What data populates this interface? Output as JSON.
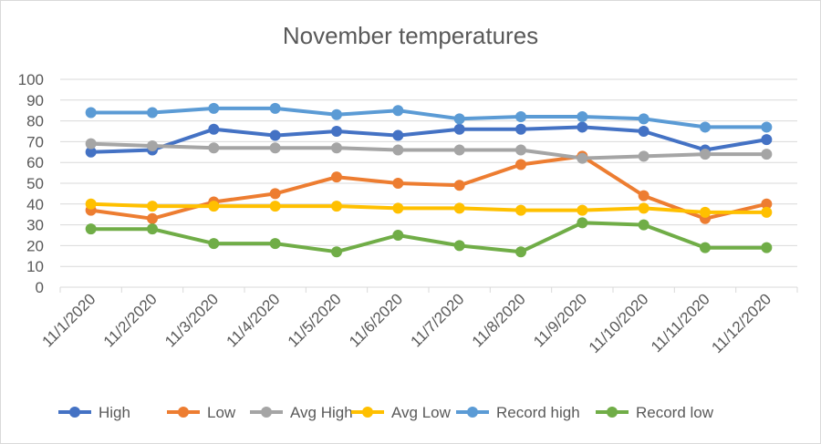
{
  "chart_data": {
    "type": "line",
    "title": "November temperatures",
    "xlabel": "",
    "ylabel": "",
    "ylim": [
      0,
      100
    ],
    "yticks": [
      0,
      10,
      20,
      30,
      40,
      50,
      60,
      70,
      80,
      90,
      100
    ],
    "grid": true,
    "legend_position": "bottom",
    "categories": [
      "11/1/2020",
      "11/2/2020",
      "11/3/2020",
      "11/4/2020",
      "11/5/2020",
      "11/6/2020",
      "11/7/2020",
      "11/8/2020",
      "11/9/2020",
      "11/10/2020",
      "11/11/2020",
      "11/12/2020"
    ],
    "series": [
      {
        "name": "High",
        "color": "#4472c4",
        "values": [
          65,
          66,
          76,
          73,
          75,
          73,
          76,
          76,
          77,
          75,
          66,
          71
        ]
      },
      {
        "name": "Low",
        "color": "#ed7d31",
        "values": [
          37,
          33,
          41,
          45,
          53,
          50,
          49,
          59,
          63,
          44,
          33,
          40
        ]
      },
      {
        "name": "Avg High",
        "color": "#a5a5a5",
        "values": [
          69,
          68,
          67,
          67,
          67,
          66,
          66,
          66,
          62,
          63,
          64,
          64
        ]
      },
      {
        "name": "Avg Low",
        "color": "#ffc000",
        "values": [
          40,
          39,
          39,
          39,
          39,
          38,
          38,
          37,
          37,
          38,
          36,
          36
        ]
      },
      {
        "name": "Record high",
        "color": "#5b9bd5",
        "values": [
          84,
          84,
          86,
          86,
          83,
          85,
          81,
          82,
          82,
          81,
          77,
          77
        ]
      },
      {
        "name": "Record low",
        "color": "#70ad47",
        "values": [
          28,
          28,
          21,
          21,
          17,
          25,
          20,
          17,
          31,
          30,
          19,
          19
        ]
      }
    ]
  }
}
